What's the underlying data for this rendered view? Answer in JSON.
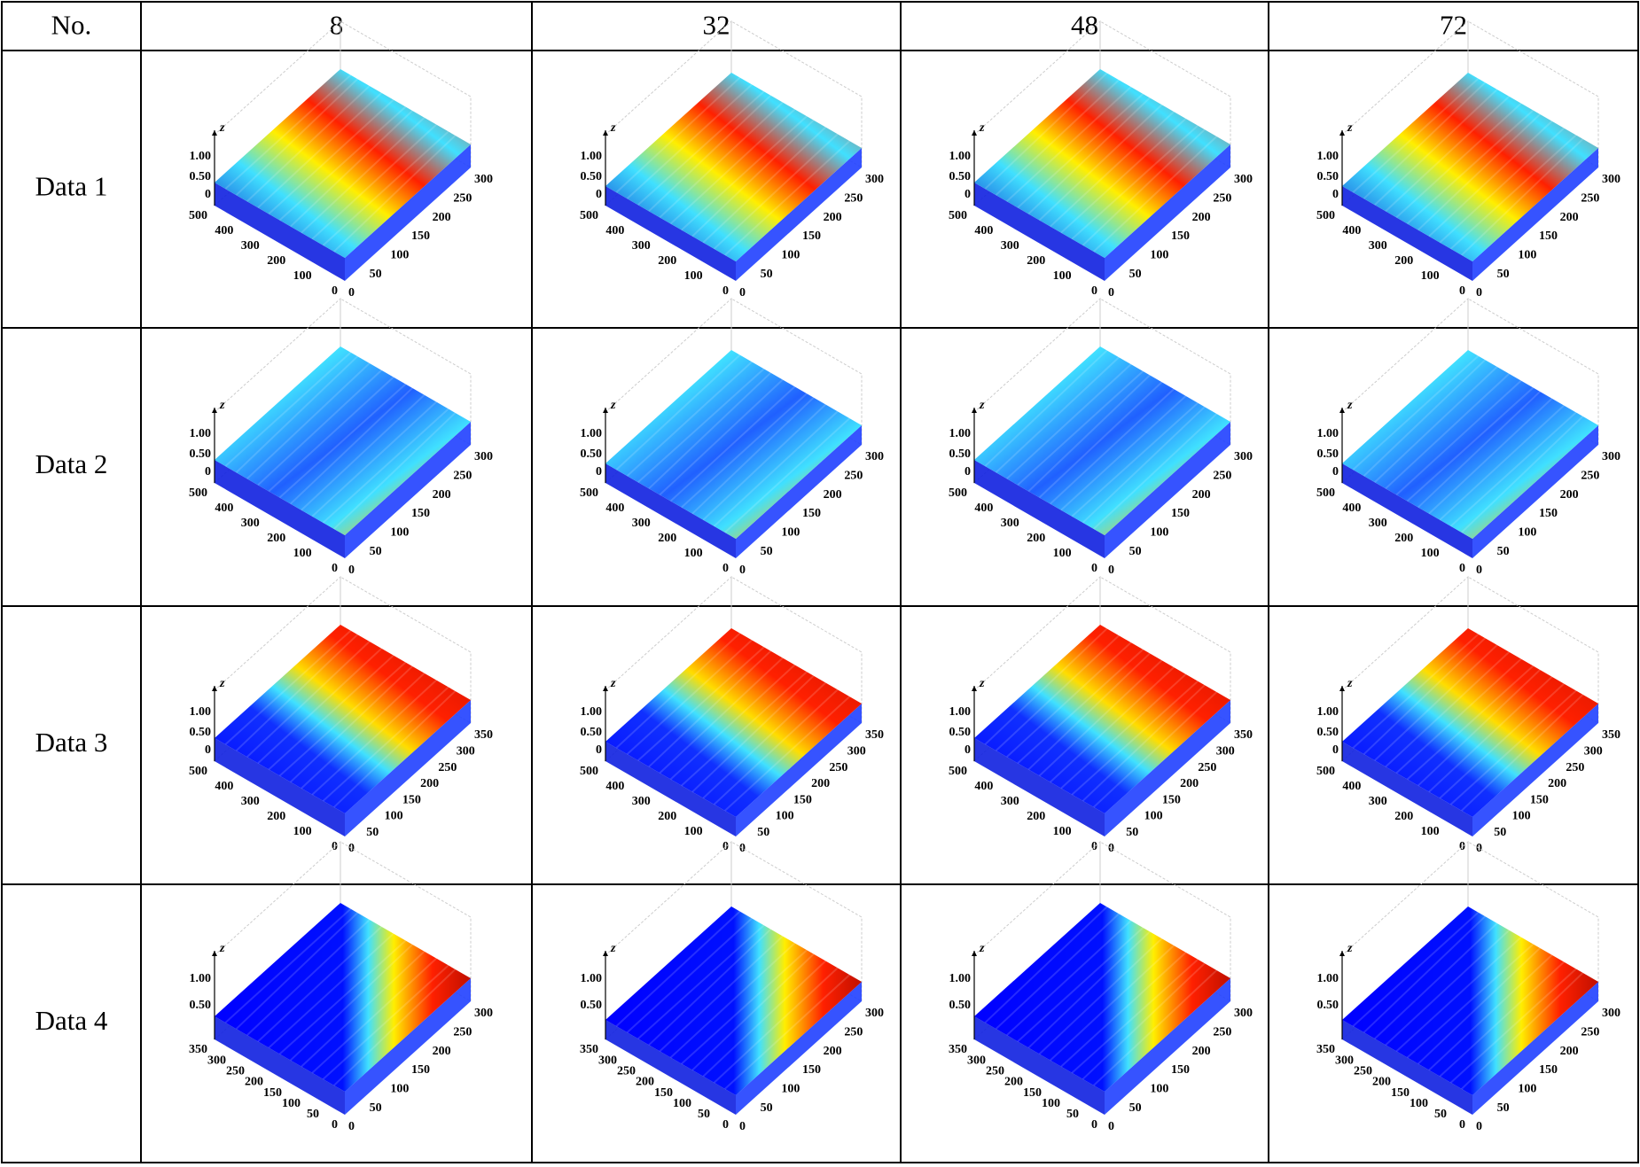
{
  "table": {
    "header": [
      "No.",
      "8",
      "32",
      "48",
      "72"
    ],
    "rows": [
      {
        "label": "Data 1",
        "z_axis": "z",
        "z_ticks": [
          "1.00",
          "0.50",
          "0"
        ],
        "y_ticks": [
          "500",
          "400",
          "300",
          "200",
          "100",
          "0"
        ],
        "x_ticks": [
          "0",
          "50",
          "100",
          "150",
          "200",
          "250",
          "300"
        ]
      },
      {
        "label": "Data 2",
        "z_axis": "z",
        "z_ticks": [
          "1.00",
          "0.50",
          "0"
        ],
        "y_ticks": [
          "500",
          "400",
          "300",
          "200",
          "100",
          "0"
        ],
        "x_ticks": [
          "0",
          "50",
          "100",
          "150",
          "200",
          "250",
          "300"
        ]
      },
      {
        "label": "Data 3",
        "z_axis": "z",
        "z_ticks": [
          "1.00",
          "0.50",
          "0"
        ],
        "y_ticks": [
          "500",
          "400",
          "300",
          "200",
          "100",
          "0"
        ],
        "x_ticks": [
          "0",
          "50",
          "100",
          "150",
          "200",
          "250",
          "300",
          "350"
        ]
      },
      {
        "label": "Data 4",
        "z_axis": "z",
        "z_ticks": [
          "1.00",
          "0.50"
        ],
        "y_ticks": [
          "350",
          "300",
          "250",
          "200",
          "150",
          "100",
          "50",
          "0"
        ],
        "x_ticks": [
          "0",
          "50",
          "100",
          "150",
          "200",
          "250",
          "300"
        ]
      }
    ]
  }
}
